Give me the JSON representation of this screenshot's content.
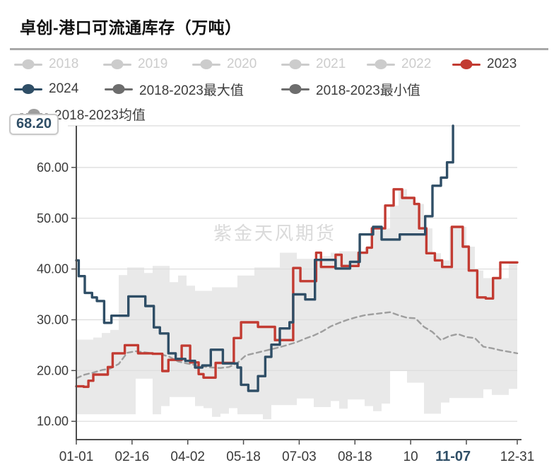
{
  "page": {
    "title": "卓创-港口可流通库存（万吨）",
    "watermark": "紫金天风期货"
  },
  "annotation": {
    "latest_value": "68.20"
  },
  "colors": {
    "red_2023": "#c23b32",
    "navy_2024": "#2f4e66",
    "legend_disabled": "#cccccc",
    "legend_minmax": "#6d6d6d",
    "mean_line": "#9e9e9e",
    "band_fill": "#e9e9e9",
    "grid_line": "#dedede",
    "axis_line": "#4d4d4d",
    "axis_text": "#3a3a3a",
    "highlight_text": "#2f4e66"
  },
  "legend": {
    "rows": [
      [
        {
          "label": "2018",
          "color": "#cccccc",
          "disabled": true
        },
        {
          "label": "2019",
          "color": "#cccccc",
          "disabled": true
        },
        {
          "label": "2020",
          "color": "#cccccc",
          "disabled": true
        },
        {
          "label": "2021",
          "color": "#cccccc",
          "disabled": true
        },
        {
          "label": "2022",
          "color": "#cccccc",
          "disabled": true
        },
        {
          "label": "2023",
          "color": "#c23b32",
          "disabled": false
        }
      ],
      [
        {
          "label": "2024",
          "color": "#2f4e66",
          "disabled": false
        },
        {
          "label": "2018-2023最大值",
          "color": "#6d6d6d",
          "disabled": false
        },
        {
          "label": "2018-2023最小值",
          "color": "#6d6d6d",
          "disabled": false
        }
      ],
      [
        {
          "label": "2018-2023均值",
          "color": "#9e9e9e",
          "disabled": false,
          "dashed": true
        }
      ]
    ]
  },
  "chart_data": {
    "type": "line",
    "title": "卓创-港口可流通库存（万吨）",
    "x_axis": {
      "unit": "day-of-year",
      "range_days": [
        0,
        364
      ],
      "tick_days": [
        0,
        46,
        92,
        138,
        184,
        230,
        276,
        322,
        364
      ],
      "tick_labels": [
        "01-01",
        "02-16",
        "04-02",
        "05-18",
        "07-03",
        "08-18",
        "10",
        "",
        "12-31"
      ],
      "highlight_tick": {
        "day": 311,
        "label": "11-07"
      }
    },
    "y_axis": {
      "min": 6.4,
      "max": 68.2,
      "grid_values": [
        10,
        20,
        30,
        40,
        50,
        60
      ],
      "grid_labels": [
        "10.00",
        "20.00",
        "30.00",
        "40.00",
        "50.00",
        "60.00"
      ],
      "top_value": 68.2
    },
    "latest_value": 68.2,
    "latest_value_label": "68.20",
    "band": {
      "name": "2018-2023最大值/最小值",
      "days": [
        0,
        7,
        14,
        21,
        28,
        35,
        42,
        49,
        56,
        63,
        70,
        77,
        84,
        91,
        98,
        105,
        112,
        119,
        126,
        133,
        140,
        147,
        154,
        161,
        168,
        175,
        182,
        189,
        196,
        203,
        210,
        217,
        224,
        231,
        238,
        245,
        252,
        259,
        266,
        273,
        280,
        287,
        294,
        301,
        308,
        315,
        322,
        329,
        336,
        343,
        350,
        357,
        364
      ],
      "max": [
        26.1,
        26.1,
        26.5,
        27.4,
        28.0,
        38.8,
        40.3,
        40.3,
        39.2,
        40.6,
        40.6,
        37.4,
        38.7,
        36.7,
        35.7,
        35.7,
        36.4,
        36.4,
        36.4,
        38.7,
        38.7,
        40.3,
        40.3,
        40.3,
        43.2,
        43.2,
        42.0,
        42.0,
        42.0,
        42.5,
        43.2,
        43.5,
        43.5,
        43.5,
        44.2,
        48.0,
        48.0,
        52.5,
        55.7,
        54.0,
        52.8,
        48.0,
        43.1,
        41.7,
        48.3,
        48.3,
        44.4,
        39.7,
        38.2,
        38.2,
        38.2,
        41.3,
        41.3
      ],
      "min": [
        11.4,
        11.4,
        11.4,
        11.4,
        11.4,
        11.4,
        11.4,
        18.4,
        18.4,
        11.4,
        13.0,
        14.8,
        14.8,
        14.8,
        13.0,
        12.6,
        10.9,
        11.5,
        12.6,
        11.4,
        11.4,
        11.4,
        10.4,
        13.2,
        13.2,
        13.2,
        14.5,
        14.5,
        12.8,
        12.8,
        14.0,
        12.5,
        14.3,
        14.3,
        13.0,
        12.0,
        13.5,
        19.9,
        19.9,
        17.6,
        17.6,
        11.5,
        11.5,
        13.7,
        14.6,
        14.6,
        14.6,
        14.6,
        16.3,
        15.2,
        15.2,
        16.4,
        16.4
      ]
    },
    "series": [
      {
        "name": "2018-2023均值",
        "style": "dashed",
        "color": "#9e9e9e",
        "step": false,
        "days": [
          0,
          7,
          14,
          21,
          28,
          35,
          42,
          49,
          56,
          63,
          70,
          77,
          84,
          91,
          98,
          105,
          112,
          119,
          126,
          133,
          140,
          147,
          154,
          161,
          168,
          175,
          182,
          189,
          196,
          203,
          210,
          217,
          224,
          231,
          238,
          245,
          252,
          259,
          266,
          273,
          280,
          287,
          294,
          301,
          308,
          315,
          322,
          329,
          336,
          343,
          350,
          357,
          364
        ],
        "values": [
          18.5,
          19.2,
          19.6,
          20.1,
          20.4,
          21.3,
          23.5,
          23.8,
          23.6,
          23.4,
          23.2,
          22.7,
          21.8,
          21.4,
          21.1,
          20.8,
          20.6,
          20.5,
          20.7,
          21.5,
          23.0,
          23.4,
          23.8,
          24.2,
          24.6,
          25.1,
          25.6,
          26.3,
          26.9,
          27.7,
          28.7,
          29.4,
          30.0,
          30.5,
          30.9,
          31.1,
          31.3,
          31.5,
          30.9,
          30.4,
          30.3,
          28.6,
          27.6,
          26.0,
          26.8,
          27.2,
          26.6,
          26.4,
          24.7,
          24.4,
          24.0,
          23.7,
          23.4
        ]
      },
      {
        "name": "2023",
        "style": "solid",
        "color": "#c23b32",
        "step": true,
        "days": [
          0,
          6,
          10,
          14,
          26,
          30,
          40,
          51,
          63,
          71,
          76,
          87,
          94,
          101,
          105,
          115,
          130,
          136,
          150,
          164,
          179,
          185,
          198,
          202,
          214,
          219,
          233,
          240,
          244,
          255,
          262,
          269,
          279,
          283,
          289,
          296,
          302,
          310,
          319,
          324,
          331,
          338,
          344,
          350,
          364
        ],
        "values": [
          16.9,
          16.8,
          18.0,
          19.2,
          20.7,
          23.4,
          25.0,
          23.4,
          23.3,
          19.9,
          22.1,
          24.9,
          21.6,
          19.3,
          18.6,
          21.5,
          26.4,
          29.5,
          28.6,
          26.0,
          40.2,
          37.6,
          43.2,
          40.4,
          42.8,
          40.6,
          43.2,
          44.2,
          48.0,
          52.5,
          55.7,
          54.0,
          52.8,
          48.0,
          43.1,
          41.7,
          40.4,
          48.3,
          44.4,
          39.7,
          34.4,
          34.2,
          38.2,
          41.3,
          41.3
        ]
      },
      {
        "name": "2024",
        "style": "solid",
        "color": "#2f4e66",
        "step": true,
        "days": [
          0,
          2,
          7,
          13,
          17,
          23,
          29,
          43,
          57,
          64,
          69,
          76,
          82,
          90,
          98,
          104,
          111,
          121,
          133,
          136,
          142,
          150,
          156,
          161,
          168,
          176,
          179,
          189,
          197,
          214,
          226,
          234,
          245,
          252,
          267,
          288,
          294,
          301,
          306,
          311
        ],
        "values": [
          41.7,
          38.6,
          35.3,
          34.4,
          33.7,
          29.4,
          30.8,
          34.6,
          32.7,
          28.5,
          27.3,
          23.4,
          22.3,
          21.9,
          20.6,
          21.0,
          24.1,
          21.4,
          20.6,
          17.2,
          16.0,
          18.9,
          22.7,
          25.1,
          28.3,
          29.5,
          35.0,
          34.0,
          41.8,
          40.1,
          41.4,
          46.8,
          48.3,
          45.8,
          46.8,
          50.4,
          56.4,
          58.0,
          61.0,
          68.2
        ]
      }
    ]
  }
}
